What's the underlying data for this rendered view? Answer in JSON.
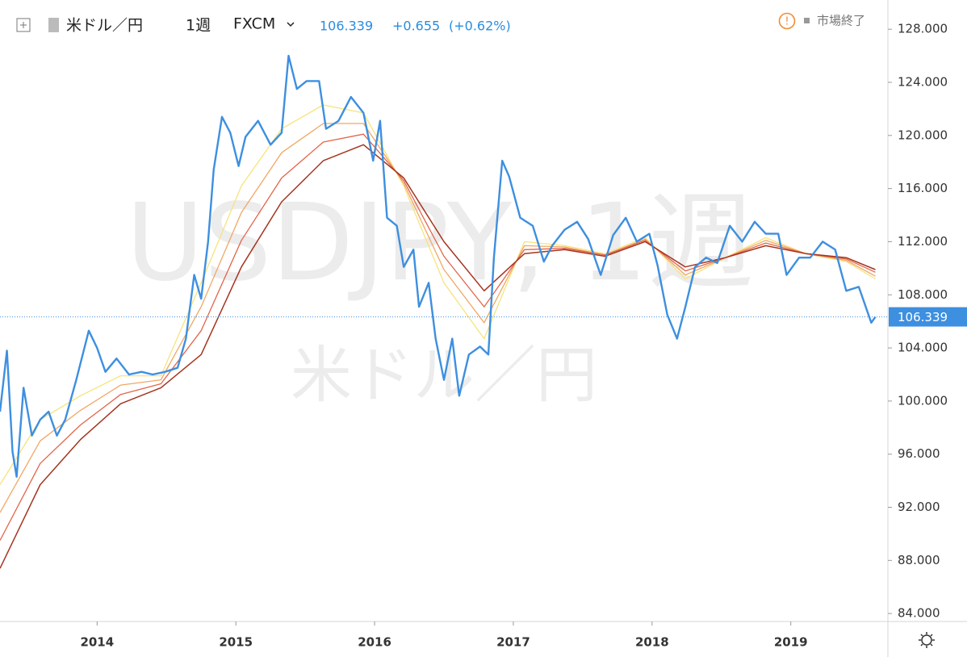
{
  "header": {
    "symbol": "米ドル／円",
    "interval": "1週",
    "source": "FXCM",
    "price": "106.339",
    "change": "+0.655",
    "change_pct": "(+0.62%)",
    "status": "市場終了"
  },
  "watermark": {
    "line1": "USDJPY, 1週",
    "line2": "米ドル／円"
  },
  "chart_data": {
    "type": "line",
    "xlim": [
      2013.3,
      2019.7
    ],
    "xticks": [
      2014,
      2015,
      2016,
      2017,
      2018,
      2019
    ],
    "ylim": [
      83.4,
      130.2
    ],
    "yticks": [
      {
        "value": 84,
        "label": "84.000"
      },
      {
        "value": 88,
        "label": "88.000"
      },
      {
        "value": 92,
        "label": "92.000"
      },
      {
        "value": 96,
        "label": "96.000"
      },
      {
        "value": 100,
        "label": "100.000"
      },
      {
        "value": 104,
        "label": "104.000"
      },
      {
        "value": 108,
        "label": "108.000"
      },
      {
        "value": 112,
        "label": "112.000"
      },
      {
        "value": 116,
        "label": "116.000"
      },
      {
        "value": 120,
        "label": "120.000"
      },
      {
        "value": 124,
        "label": "124.000"
      },
      {
        "value": 128,
        "label": "128.000"
      }
    ],
    "grid": false,
    "last_price": 106.339,
    "series": [
      {
        "color": "#f7e37b",
        "width": 1.3,
        "x": [
          2013.3,
          2013.59,
          2013.88,
          2014.17,
          2014.46,
          2014.75,
          2015.04,
          2015.33,
          2015.63,
          2015.92,
          2016.21,
          2016.5,
          2016.79,
          2017.08,
          2017.37,
          2017.66,
          2017.95,
          2018.24,
          2018.53,
          2018.82,
          2019.11,
          2019.4,
          2019.61
        ],
        "values": [
          93.7,
          98.6,
          100.4,
          101.9,
          101.9,
          108.9,
          116.2,
          120.5,
          122.3,
          121.7,
          116.2,
          108.9,
          104.7,
          112,
          111.7,
          111.1,
          112.3,
          109.2,
          110.8,
          112.3,
          111.1,
          110.5,
          109.2
        ]
      },
      {
        "color": "#f0a765",
        "width": 1.3,
        "x": [
          2013.3,
          2013.59,
          2013.88,
          2014.17,
          2014.46,
          2014.75,
          2015.04,
          2015.33,
          2015.63,
          2015.92,
          2016.21,
          2016.5,
          2016.79,
          2017.08,
          2017.37,
          2017.66,
          2017.95,
          2018.24,
          2018.53,
          2018.82,
          2019.11,
          2019.4,
          2019.61
        ],
        "values": [
          91.6,
          97.0,
          99.3,
          101.2,
          101.6,
          107.1,
          114.2,
          118.7,
          120.9,
          120.9,
          116.4,
          109.9,
          105.9,
          111.7,
          111.6,
          111.0,
          112.2,
          109.5,
          110.8,
          112.1,
          111.1,
          110.6,
          109.4
        ]
      },
      {
        "color": "#e2654b",
        "width": 1.3,
        "x": [
          2013.3,
          2013.59,
          2013.88,
          2014.17,
          2014.46,
          2014.75,
          2015.04,
          2015.33,
          2015.63,
          2015.92,
          2016.21,
          2016.5,
          2016.79,
          2017.08,
          2017.37,
          2017.66,
          2017.95,
          2018.24,
          2018.53,
          2018.82,
          2019.11,
          2019.4,
          2019.61
        ],
        "values": [
          89.5,
          95.3,
          98.2,
          100.5,
          101.3,
          105.3,
          112.1,
          116.8,
          119.5,
          120.1,
          116.6,
          110.9,
          107.1,
          111.4,
          111.5,
          111.0,
          112.1,
          109.8,
          110.8,
          111.9,
          111.1,
          110.7,
          109.7
        ]
      },
      {
        "color": "#a5341f",
        "width": 1.5,
        "x": [
          2013.3,
          2013.59,
          2013.88,
          2014.17,
          2014.46,
          2014.75,
          2015.04,
          2015.33,
          2015.63,
          2015.92,
          2016.21,
          2016.5,
          2016.79,
          2017.08,
          2017.37,
          2017.66,
          2017.95,
          2018.24,
          2018.53,
          2018.82,
          2019.11,
          2019.4,
          2019.61
        ],
        "values": [
          87.4,
          93.7,
          97.1,
          99.8,
          101,
          103.5,
          110.1,
          115,
          118.1,
          119.3,
          116.8,
          112,
          108.3,
          111.1,
          111.4,
          110.9,
          112,
          110.1,
          110.8,
          111.7,
          111.1,
          110.8,
          109.9
        ]
      },
      {
        "color": "#3d8fe0",
        "width": 2.4,
        "x": [
          2013.3,
          2013.35,
          2013.39,
          2013.42,
          2013.47,
          2013.53,
          2013.59,
          2013.65,
          2013.71,
          2013.77,
          2013.85,
          2013.94,
          2014.0,
          2014.06,
          2014.14,
          2014.23,
          2014.32,
          2014.4,
          2014.49,
          2014.58,
          2014.64,
          2014.7,
          2014.75,
          2014.8,
          2014.84,
          2014.9,
          2014.96,
          2015.02,
          2015.07,
          2015.16,
          2015.25,
          2015.33,
          2015.38,
          2015.44,
          2015.51,
          2015.6,
          2015.65,
          2015.74,
          2015.83,
          2015.92,
          2015.99,
          2016.04,
          2016.09,
          2016.16,
          2016.21,
          2016.28,
          2016.32,
          2016.39,
          2016.44,
          2016.5,
          2016.56,
          2016.61,
          2016.68,
          2016.76,
          2016.82,
          2016.86,
          2016.92,
          2016.97,
          2017.05,
          2017.14,
          2017.22,
          2017.28,
          2017.37,
          2017.46,
          2017.54,
          2017.63,
          2017.72,
          2017.81,
          2017.89,
          2017.98,
          2018.04,
          2018.11,
          2018.18,
          2018.24,
          2018.31,
          2018.39,
          2018.47,
          2018.56,
          2018.65,
          2018.74,
          2018.82,
          2018.91,
          2018.97,
          2019.06,
          2019.14,
          2019.23,
          2019.32,
          2019.4,
          2019.49,
          2019.58,
          2019.61
        ],
        "values": [
          99.2,
          103.8,
          96.2,
          94.3,
          101,
          97.4,
          98.6,
          99.2,
          97.4,
          98.6,
          101.6,
          105.3,
          104,
          102.2,
          103.2,
          102,
          102.2,
          102,
          102.2,
          102.5,
          104.7,
          109.5,
          107.7,
          112,
          117.4,
          121.4,
          120.2,
          117.7,
          119.9,
          121.1,
          119.3,
          120.2,
          126,
          123.5,
          124.1,
          124.1,
          120.5,
          121.1,
          122.9,
          121.7,
          118.1,
          121.1,
          113.8,
          113.2,
          110.1,
          111.4,
          107.1,
          108.9,
          104.7,
          101.6,
          104.7,
          100.4,
          103.5,
          104.1,
          103.5,
          110.8,
          118.1,
          116.9,
          113.8,
          113.2,
          110.5,
          111.7,
          112.9,
          113.5,
          112.2,
          109.5,
          112.5,
          113.8,
          112,
          112.6,
          110.2,
          106.5,
          104.7,
          107.1,
          110.1,
          110.8,
          110.4,
          113.2,
          112,
          113.5,
          112.6,
          112.6,
          109.5,
          110.8,
          110.8,
          112,
          111.4,
          108.3,
          108.6,
          105.9,
          106.339
        ]
      }
    ]
  }
}
